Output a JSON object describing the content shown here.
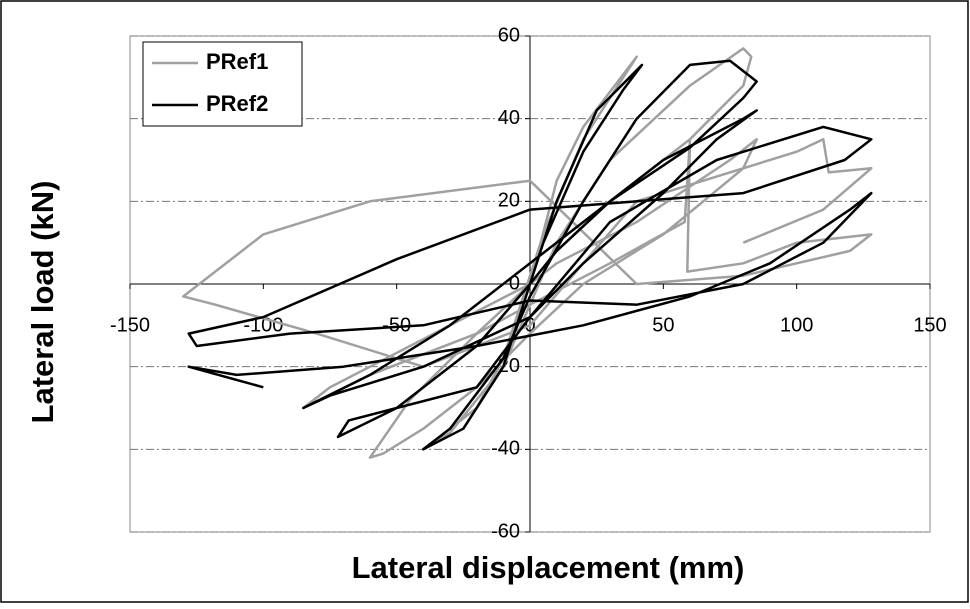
{
  "chart_data": {
    "type": "line",
    "x_label": "Lateral displacement (mm)",
    "y_label": "Lateral load (kN)",
    "xlim": [
      -150,
      150
    ],
    "xticks": [
      -150,
      -100,
      -50,
      0,
      50,
      100,
      150
    ],
    "ylim": [
      -60,
      60
    ],
    "yticks": [
      -60,
      -40,
      -20,
      0,
      20,
      40,
      60
    ],
    "grid": true,
    "legend": "top-left",
    "series": [
      {
        "name": "PRef1",
        "color": "#a0a0a0",
        "x": [
          0,
          10,
          20,
          40,
          35,
          20,
          5,
          0,
          -10,
          -20,
          -40,
          -30,
          -10,
          0,
          10,
          30,
          60,
          80,
          83,
          80,
          60,
          30,
          10,
          0,
          -20,
          -45,
          -60,
          -55,
          -40,
          -20,
          0,
          20,
          50,
          80,
          85,
          75,
          40,
          10,
          0,
          -30,
          -60,
          -75,
          -85,
          -60,
          -20,
          0,
          30,
          58,
          60,
          59,
          80,
          100,
          128,
          120,
          80,
          40,
          0,
          -60,
          -100,
          -130,
          -118,
          -80,
          -40,
          0,
          40,
          100,
          110,
          112,
          128,
          110,
          80
        ],
        "values": [
          0,
          25,
          38,
          55,
          50,
          35,
          12,
          2,
          -18,
          -30,
          -40,
          -36,
          -20,
          -5,
          10,
          30,
          48,
          57,
          55,
          48,
          35,
          20,
          8,
          0,
          -12,
          -28,
          -42,
          -41,
          -35,
          -25,
          -12,
          0,
          12,
          28,
          35,
          30,
          15,
          5,
          0,
          -10,
          -20,
          -25,
          -30,
          -22,
          -12,
          -5,
          5,
          15,
          35,
          3,
          5,
          10,
          12,
          8,
          2,
          0,
          25,
          20,
          12,
          -3,
          -5,
          -12,
          -20,
          -10,
          20,
          32,
          35,
          27,
          28,
          18,
          10
        ]
      },
      {
        "name": "PRef2",
        "color": "#000000",
        "x": [
          0,
          10,
          25,
          42,
          35,
          20,
          5,
          0,
          -10,
          -25,
          -40,
          -30,
          -10,
          0,
          20,
          40,
          60,
          75,
          85,
          80,
          60,
          30,
          10,
          0,
          -20,
          -50,
          -72,
          -68,
          -50,
          -20,
          0,
          20,
          50,
          70,
          85,
          80,
          50,
          20,
          0,
          -30,
          -60,
          -85,
          -75,
          -40,
          0,
          30,
          70,
          110,
          128,
          118,
          80,
          40,
          0,
          -50,
          -100,
          -128,
          -125,
          -90,
          -40,
          0,
          40,
          80,
          110,
          128,
          120,
          90,
          60,
          20,
          -20,
          -70,
          -110,
          -128,
          -100
        ],
        "values": [
          0,
          20,
          42,
          53,
          47,
          32,
          10,
          0,
          -20,
          -35,
          -40,
          -35,
          -18,
          -3,
          20,
          40,
          53,
          54,
          49,
          45,
          33,
          20,
          8,
          0,
          -15,
          -30,
          -37,
          -33,
          -30,
          -25,
          -8,
          5,
          22,
          35,
          42,
          40,
          30,
          15,
          5,
          -10,
          -22,
          -30,
          -27,
          -20,
          -8,
          15,
          30,
          38,
          35,
          30,
          22,
          20,
          18,
          6,
          -8,
          -12,
          -15,
          -12,
          -10,
          -4,
          -5,
          0,
          10,
          22,
          18,
          5,
          -3,
          -10,
          -15,
          -20,
          -22,
          -20,
          -25
        ]
      }
    ]
  }
}
